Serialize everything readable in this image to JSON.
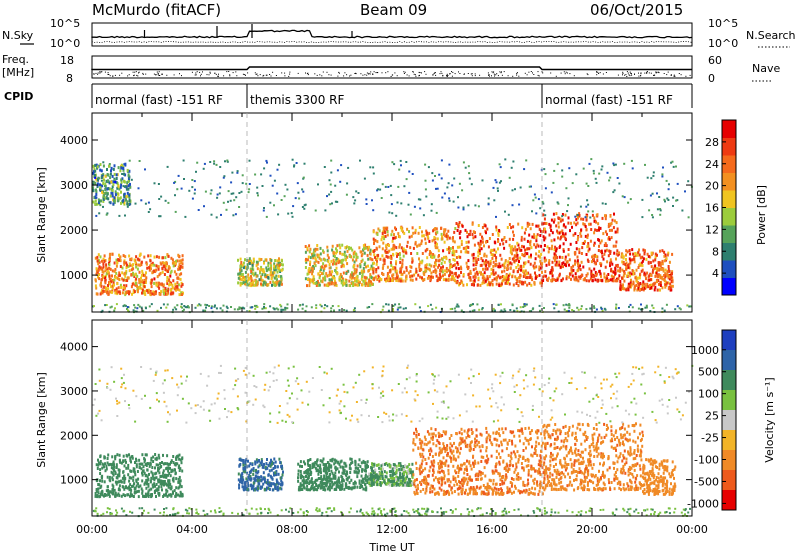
{
  "header": {
    "station": "McMurdo (fitACF)",
    "beam": "Beam 09",
    "date": "06/Oct/2015"
  },
  "strip_labels": {
    "nsky": "N.Sky",
    "nsearch": "N.Search",
    "freq": "Freq.",
    "freq_unit": "[MHz]",
    "nave": "Nave",
    "cpid": "CPID",
    "nsky_ticks": [
      "10^5",
      "10^0"
    ],
    "nsearch_ticks": [
      "10^5",
      "10^0"
    ],
    "freq_ticks": [
      "18",
      "8"
    ],
    "nave_ticks": [
      "60",
      "0"
    ]
  },
  "chart_data": [
    {
      "type": "line",
      "panel": "noise",
      "series": [
        {
          "name": "N.Sky",
          "values": []
        },
        {
          "name": "N.Search",
          "values": []
        }
      ],
      "ylim": [
        1,
        100000
      ],
      "yscale": "log"
    },
    {
      "type": "line",
      "panel": "frequency-nave",
      "series": [
        {
          "name": "Freq.",
          "values": []
        },
        {
          "name": "Nave",
          "values": []
        }
      ],
      "ylim_freq": [
        8,
        18
      ],
      "ylim_nave": [
        0,
        60
      ]
    },
    {
      "type": "table",
      "panel": "cpid",
      "modes": [
        {
          "label": "normal (fast) -151 RF",
          "start_hour": 0,
          "end_hour": 6.2
        },
        {
          "label": "themis 3300 RF",
          "start_hour": 6.2,
          "end_hour": 18.0
        },
        {
          "label": "normal (fast) -151 RF",
          "start_hour": 18.0,
          "end_hour": 24
        }
      ]
    },
    {
      "type": "heatmap",
      "panel": "power",
      "ylabel": "Slant Range [km]",
      "ylim": [
        180,
        4600
      ],
      "yticks": [
        1000,
        2000,
        3000,
        4000
      ],
      "colorbar": {
        "label": "Power [dB]",
        "range": [
          0,
          32
        ],
        "ticks": [
          "4",
          "8",
          "12",
          "16",
          "20",
          "24",
          "28"
        ],
        "colors": [
          "#0000ff",
          "#1e4fbf",
          "#2e7f6f",
          "#56a35a",
          "#9ccc3c",
          "#f0c420",
          "#f39020",
          "#f56a1c",
          "#ee3a12",
          "#e60000"
        ]
      },
      "scatter_blobs": [
        {
          "start_hour": 0.1,
          "end_hour": 3.6,
          "range_low": 600,
          "range_high": 1500,
          "power_db": 22
        },
        {
          "start_hour": 0.0,
          "end_hour": 1.5,
          "range_low": 2600,
          "range_high": 3500,
          "power_db": 10
        },
        {
          "start_hour": 5.8,
          "end_hour": 7.6,
          "range_low": 800,
          "range_high": 1400,
          "power_db": 16
        },
        {
          "start_hour": 8.5,
          "end_hour": 11.2,
          "range_low": 800,
          "range_high": 1700,
          "power_db": 18
        },
        {
          "start_hour": 11.2,
          "end_hour": 14.5,
          "range_low": 900,
          "range_high": 2100,
          "power_db": 22
        },
        {
          "start_hour": 14.5,
          "end_hour": 18.0,
          "range_low": 800,
          "range_high": 2200,
          "power_db": 24
        },
        {
          "start_hour": 18.0,
          "end_hour": 21.0,
          "range_low": 900,
          "range_high": 2400,
          "power_db": 26
        },
        {
          "start_hour": 21.0,
          "end_hour": 23.2,
          "range_low": 700,
          "range_high": 1600,
          "power_db": 24
        }
      ]
    },
    {
      "type": "heatmap",
      "panel": "velocity",
      "ylabel": "Slant Range [km]",
      "xlabel": "Time UT",
      "ylim": [
        180,
        4600
      ],
      "yticks": [
        1000,
        2000,
        3000,
        4000
      ],
      "xlim": [
        0,
        24
      ],
      "xticks": [
        "00:00",
        "04:00",
        "08:00",
        "12:00",
        "16:00",
        "20:00",
        "00:00"
      ],
      "colorbar": {
        "label": "Velocity [m s⁻¹]",
        "ticks": [
          "1000",
          "500",
          "100",
          "25",
          "-25",
          "-100",
          "-500",
          "-1000"
        ],
        "colors": [
          "#1e3fbf",
          "#2e64a8",
          "#3f8a5c",
          "#79c140",
          "#c8c8c8",
          "#f2b428",
          "#f08a26",
          "#ee5a1c",
          "#e60000"
        ]
      },
      "scatter_blobs": [
        {
          "start_hour": 0.1,
          "end_hour": 3.6,
          "range_low": 650,
          "range_high": 1600,
          "velocity": 300
        },
        {
          "start_hour": 5.8,
          "end_hour": 7.6,
          "range_low": 800,
          "range_high": 1500,
          "velocity": 600
        },
        {
          "start_hour": 8.2,
          "end_hour": 11.0,
          "range_low": 800,
          "range_high": 1500,
          "velocity": 300
        },
        {
          "start_hour": 11.0,
          "end_hour": 12.8,
          "range_low": 900,
          "range_high": 1400,
          "velocity": 150
        },
        {
          "start_hour": 12.8,
          "end_hour": 18.0,
          "range_low": 700,
          "range_high": 2200,
          "velocity": -450
        },
        {
          "start_hour": 18.0,
          "end_hour": 22.0,
          "range_low": 800,
          "range_high": 2300,
          "velocity": -400
        },
        {
          "start_hour": 22.0,
          "end_hour": 23.3,
          "range_low": 700,
          "range_high": 1500,
          "velocity": -350
        }
      ]
    }
  ]
}
